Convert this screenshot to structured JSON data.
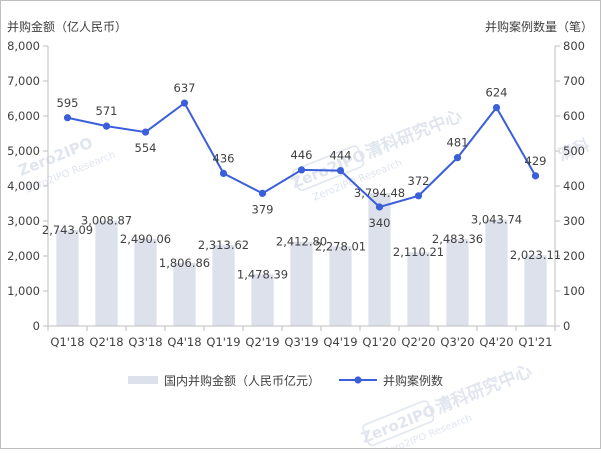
{
  "chart_data": {
    "type": "bar",
    "categories": [
      "Q1'18",
      "Q2'18",
      "Q3'18",
      "Q4'18",
      "Q1'19",
      "Q2'19",
      "Q3'19",
      "Q4'19",
      "Q1'20",
      "Q2'20",
      "Q3'20",
      "Q4'20",
      "Q1'21"
    ],
    "left_axis_title": "并购金额（亿人民币）",
    "right_axis_title": "并购案例数量（笔）",
    "left_ticks": [
      "0",
      "1,000",
      "2,000",
      "3,000",
      "4,000",
      "5,000",
      "6,000",
      "7,000",
      "8,000"
    ],
    "right_ticks": [
      "0",
      "100",
      "200",
      "300",
      "400",
      "500",
      "600",
      "700",
      "800"
    ],
    "ylim_left": [
      0,
      8000
    ],
    "ylim_right": [
      0,
      800
    ],
    "series": [
      {
        "name": "国内并购金额（人民币亿元）",
        "type": "bar",
        "axis": "left",
        "color": "#dde1ec",
        "values": [
          2743.09,
          3008.87,
          2490.06,
          1806.86,
          2313.62,
          1478.39,
          2412.8,
          2278.01,
          3794.48,
          2110.21,
          2483.36,
          3043.74,
          2023.11
        ],
        "labels": [
          "2,743.09",
          "3,008.87",
          "2,490.06",
          "1,806.86",
          "2,313.62",
          "1,478.39",
          "2,412.80",
          "2,278.01",
          "3,794.48",
          "2,110.21",
          "2,483.36",
          "3,043.74",
          "2,023.11"
        ]
      },
      {
        "name": "并购案例数",
        "type": "line",
        "axis": "right",
        "color": "#3a5fd9",
        "values": [
          595,
          571,
          554,
          637,
          436,
          379,
          446,
          444,
          340,
          372,
          481,
          624,
          429
        ],
        "labels": [
          "595",
          "571",
          "554",
          "637",
          "436",
          "379",
          "446",
          "444",
          "340",
          "372",
          "481",
          "624",
          "429"
        ]
      }
    ],
    "legend_position": "bottom",
    "grid": false
  },
  "watermark": {
    "brand": "Zero2IPO",
    "cn": "清科研究中心",
    "en": "Zero2IPO Research"
  }
}
